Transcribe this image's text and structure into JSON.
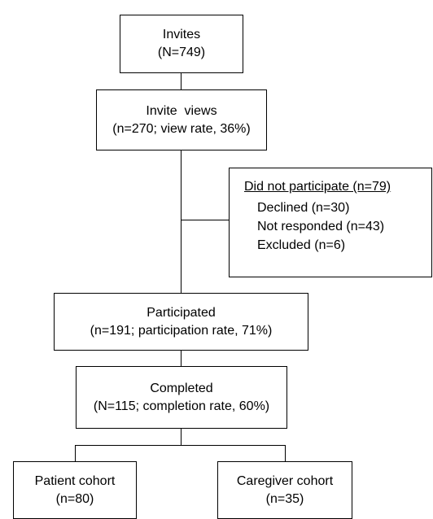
{
  "diagram": {
    "invites": {
      "line1": "Invites",
      "line2": "(N=749)"
    },
    "invite_views": {
      "line1": "Invite  views",
      "line2": "(n=270; view rate, 36%)"
    },
    "did_not_participate": {
      "title": "Did not participate (n=79)",
      "items": [
        "Declined (n=30)",
        "Not responded (n=43)",
        "Excluded (n=6)"
      ]
    },
    "participated": {
      "line1": "Participated",
      "line2": "(n=191; participation rate, 71%)"
    },
    "completed": {
      "line1": "Completed",
      "line2": "(N=115; completion rate, 60%)"
    },
    "patient_cohort": {
      "line1": "Patient cohort",
      "line2": "(n=80)"
    },
    "caregiver_cohort": {
      "line1": "Caregiver cohort",
      "line2": "(n=35)"
    }
  }
}
